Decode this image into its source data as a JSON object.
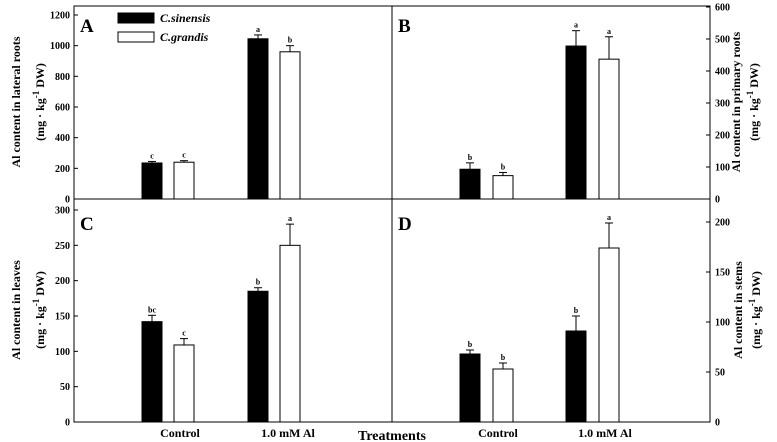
{
  "figure": {
    "xlabel": "Treatments",
    "categories": [
      "Control",
      "1.0 mM Al"
    ],
    "legend": [
      {
        "name": "C.sinensis",
        "color": "#000000"
      },
      {
        "name": "C.grandis",
        "color": "#ffffff"
      }
    ]
  },
  "chart_data": [
    {
      "type": "bar",
      "panel": "A",
      "ylabel": "Al content in lateral roots",
      "unit": {
        "prefix": "(mg · kg",
        "sup": "-1",
        "suffix": " DW)"
      },
      "categories": [
        "Control",
        "1.0 mM Al"
      ],
      "ylim": [
        0,
        1200
      ],
      "yticks": [
        0,
        200,
        400,
        600,
        800,
        1000,
        1200
      ],
      "series": [
        {
          "name": "C.sinensis",
          "values": [
            235,
            1045
          ],
          "errors": [
            10,
            25
          ],
          "labels": [
            "c",
            "a"
          ]
        },
        {
          "name": "C.grandis",
          "values": [
            240,
            960
          ],
          "errors": [
            10,
            40
          ],
          "labels": [
            "c",
            "b"
          ]
        }
      ]
    },
    {
      "type": "bar",
      "panel": "B",
      "ylabel": "Al content in primary roots",
      "unit": {
        "prefix": "(mg · kg",
        "sup": "-1",
        "suffix": " DW)"
      },
      "categories": [
        "Control",
        "1.0 mM Al"
      ],
      "ylim": [
        0,
        600
      ],
      "yticks": [
        0,
        100,
        200,
        300,
        400,
        500,
        600
      ],
      "series": [
        {
          "name": "C.sinensis",
          "values": [
            93,
            478
          ],
          "errors": [
            20,
            48
          ],
          "labels": [
            "b",
            "a"
          ]
        },
        {
          "name": "C.grandis",
          "values": [
            73,
            437
          ],
          "errors": [
            10,
            70
          ],
          "labels": [
            "b",
            "a"
          ]
        }
      ]
    },
    {
      "type": "bar",
      "panel": "C",
      "ylabel": "Al content in leaves",
      "unit": {
        "prefix": "(mg · kg",
        "sup": "-1",
        "suffix": "  DW)"
      },
      "categories": [
        "Control",
        "1.0 mM Al"
      ],
      "ylim": [
        0,
        300
      ],
      "yticks": [
        0,
        50,
        100,
        150,
        200,
        250,
        300
      ],
      "series": [
        {
          "name": "C.sinensis",
          "values": [
            142,
            185
          ],
          "errors": [
            9,
            5
          ],
          "labels": [
            "bc",
            "b"
          ]
        },
        {
          "name": "C.grandis",
          "values": [
            109,
            250
          ],
          "errors": [
            9,
            30
          ],
          "labels": [
            "c",
            "a"
          ]
        }
      ]
    },
    {
      "type": "bar",
      "panel": "D",
      "ylabel": "Al content in stems",
      "unit": {
        "prefix": "(mg · kg",
        "sup": "-1",
        "suffix": " DW)"
      },
      "categories": [
        "Control",
        "1.0 mM Al"
      ],
      "ylim": [
        0,
        200
      ],
      "yticks": [
        0,
        50,
        100,
        150,
        200
      ],
      "series": [
        {
          "name": "C.sinensis",
          "values": [
            68,
            91
          ],
          "errors": [
            4,
            15
          ],
          "labels": [
            "b",
            "b"
          ]
        },
        {
          "name": "C.grandis",
          "values": [
            53,
            174
          ],
          "errors": [
            6,
            25
          ],
          "labels": [
            "b",
            "a"
          ]
        }
      ]
    }
  ]
}
